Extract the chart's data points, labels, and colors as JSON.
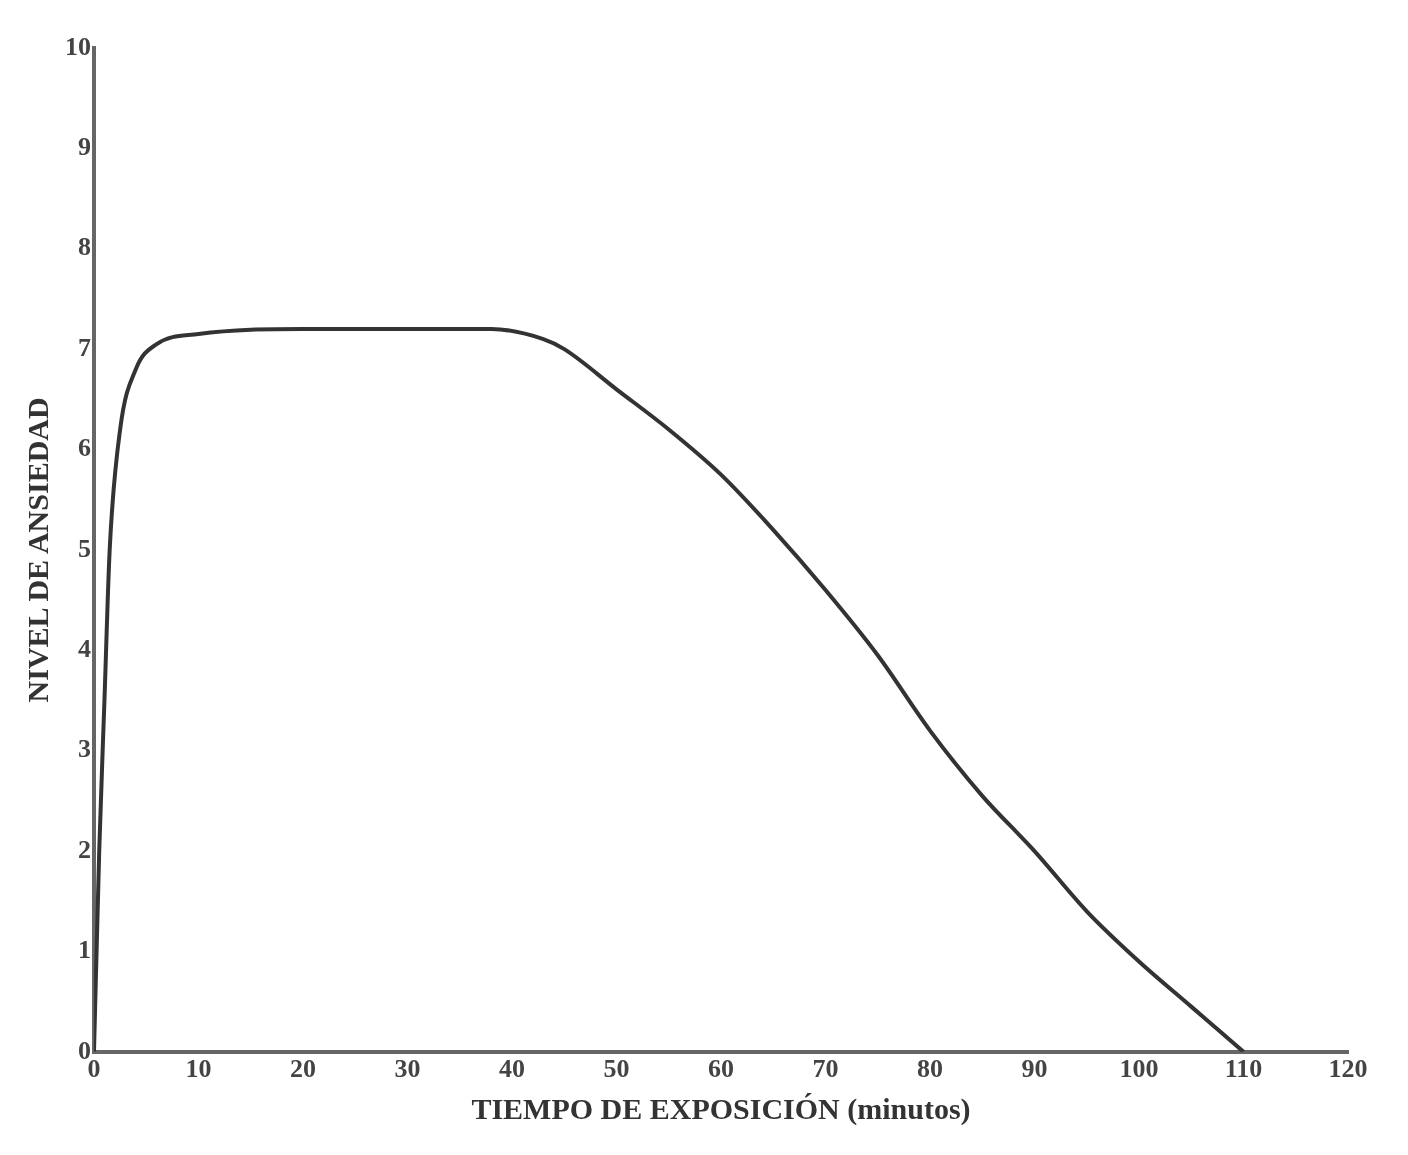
{
  "chart_data": {
    "type": "line",
    "xlabel": "TIEMPO DE EXPOSICIÓN (minutos)",
    "ylabel": "NIVEL DE ANSIEDAD",
    "x": [
      0,
      0.5,
      1,
      1.5,
      2.5,
      4,
      6,
      10,
      20,
      30,
      38,
      43,
      45,
      50,
      55,
      60,
      65,
      70,
      75,
      80,
      85,
      90,
      95,
      100,
      105,
      110
    ],
    "series": [
      {
        "color": "#333333",
        "values": [
          0,
          2,
          3.5,
          5,
          6.2,
          6.8,
          7.05,
          7.15,
          7.2,
          7.2,
          7.2,
          7.1,
          7.0,
          6.6,
          6.2,
          5.75,
          5.2,
          4.6,
          3.95,
          3.2,
          2.55,
          2.0,
          1.4,
          0.9,
          0.45,
          0
        ]
      }
    ],
    "xlim": [
      0,
      120
    ],
    "xticks": [
      0,
      10,
      20,
      30,
      40,
      50,
      60,
      70,
      80,
      90,
      100,
      110,
      120
    ],
    "ylim": [
      0,
      10
    ],
    "yticks": [
      0,
      1,
      2,
      3,
      4,
      5,
      6,
      7,
      8,
      9,
      10
    ],
    "grid": false,
    "legend": false,
    "marker": "none",
    "line_style": "solid"
  }
}
